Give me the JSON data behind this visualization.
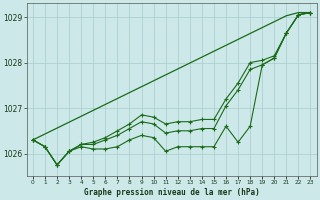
{
  "xlabel_label": "Graphe pression niveau de la mer (hPa)",
  "background_color": "#cce8e8",
  "grid_color": "#a8cccc",
  "line_color": "#1a6b1a",
  "hours": [
    0,
    1,
    2,
    3,
    4,
    5,
    6,
    7,
    8,
    9,
    10,
    11,
    12,
    13,
    14,
    15,
    16,
    17,
    18,
    19,
    20,
    21,
    22,
    23
  ],
  "series_straight": [
    1026.3,
    1026.43,
    1026.56,
    1026.69,
    1026.82,
    1026.95,
    1027.08,
    1027.21,
    1027.34,
    1027.47,
    1027.6,
    1027.73,
    1027.86,
    1027.99,
    1028.12,
    1028.25,
    1028.38,
    1028.51,
    1028.64,
    1028.77,
    1028.9,
    1029.03,
    1029.1,
    1029.1
  ],
  "series_main": [
    1026.3,
    1026.15,
    1025.75,
    1026.05,
    1026.15,
    1026.1,
    1026.1,
    1026.15,
    1026.3,
    1026.4,
    1026.35,
    1026.05,
    1026.15,
    1026.15,
    1026.15,
    1026.15,
    1026.6,
    1026.25,
    1026.6,
    1027.95,
    1028.1,
    1028.65,
    1029.05,
    1029.1
  ],
  "series_mid1": [
    1026.3,
    1026.15,
    1025.75,
    1026.05,
    1026.2,
    1026.2,
    1026.3,
    1026.4,
    1026.55,
    1026.7,
    1026.65,
    1026.45,
    1026.5,
    1026.5,
    1026.55,
    1026.55,
    1027.05,
    1027.4,
    1027.85,
    1027.95,
    1028.1,
    1028.65,
    1029.05,
    1029.1
  ],
  "series_mid2": [
    1026.3,
    1026.15,
    1025.75,
    1026.05,
    1026.2,
    1026.25,
    1026.35,
    1026.5,
    1026.65,
    1026.85,
    1026.8,
    1026.65,
    1026.7,
    1026.7,
    1026.75,
    1026.75,
    1027.2,
    1027.55,
    1028.0,
    1028.05,
    1028.15,
    1028.65,
    1029.05,
    1029.1
  ],
  "ylim": [
    1025.5,
    1029.3
  ],
  "yticks": [
    1026,
    1027,
    1028,
    1029
  ],
  "xticks": [
    0,
    1,
    2,
    3,
    4,
    5,
    6,
    7,
    8,
    9,
    10,
    11,
    12,
    13,
    14,
    15,
    16,
    17,
    18,
    19,
    20,
    21,
    22,
    23
  ]
}
